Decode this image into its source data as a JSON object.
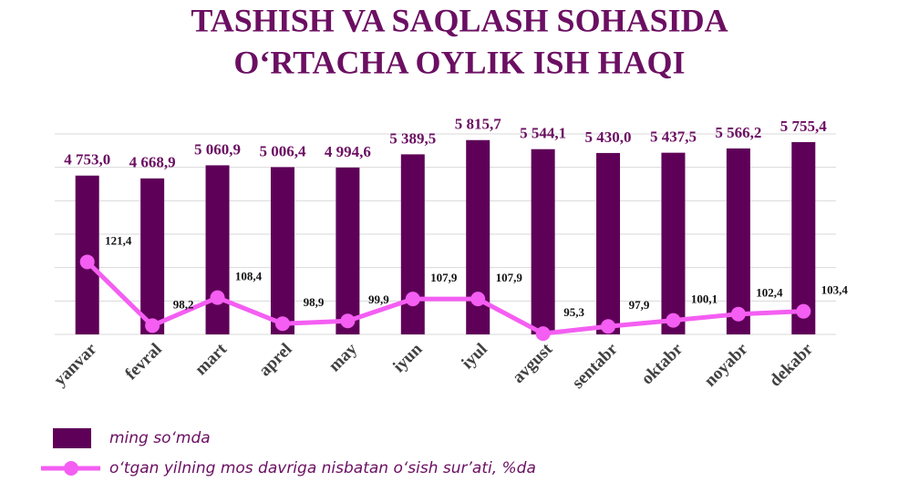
{
  "chart_data": {
    "type": "bar-line",
    "title": [
      "TASHISH VA SAQLASH SOHASIDA",
      "O‘RTACHA OYLIK ISH HAQI"
    ],
    "categories": [
      "yanvar",
      "fevral",
      "mart",
      "aprel",
      "may",
      "iyun",
      "iyul",
      "avgust",
      "sentabr",
      "oktabr",
      "noyabr",
      "dekabr"
    ],
    "series": [
      {
        "name": "ming so‘mda",
        "type": "bar",
        "color": "#5e0058",
        "values": [
          4753.0,
          4668.9,
          5060.9,
          5006.4,
          4994.6,
          5389.5,
          5815.7,
          5544.1,
          5430.0,
          5437.5,
          5566.2,
          5755.4
        ],
        "value_labels": [
          "4 753,0",
          "4 668,9",
          "5 060,9",
          "5 006,4",
          "4 994,6",
          "5 389,5",
          "5 815,7",
          "5 544,1",
          "5 430,0",
          "5 437,5",
          "5 566,2",
          "5 755,4"
        ]
      },
      {
        "name": "o‘tgan yilning mos davriga nisbatan o‘sish sur’ati, %da",
        "type": "line",
        "axis": "y2",
        "color": "#f45ef2",
        "values": [
          121.4,
          98.2,
          108.4,
          98.9,
          99.9,
          107.9,
          107.9,
          95.3,
          97.9,
          100.1,
          102.4,
          103.4
        ],
        "value_labels": [
          "121,4",
          "98,2",
          "108,4",
          "98,9",
          "99,9",
          "107,9",
          "107,9",
          "95,3",
          "97,9",
          "100,1",
          "102,4",
          "103,4"
        ]
      }
    ],
    "ylim": [
      0,
      6000
    ],
    "yticks": [
      0,
      1000,
      2000,
      3000,
      4000,
      5000,
      6000
    ],
    "y2lim": [
      95,
      168
    ],
    "grid": true
  }
}
